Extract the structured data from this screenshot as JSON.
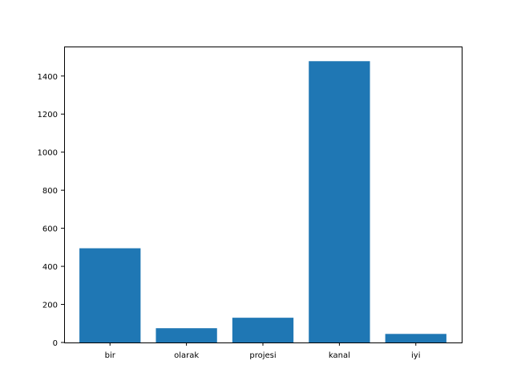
{
  "chart_data": {
    "type": "bar",
    "title": "",
    "xlabel": "",
    "ylabel": "",
    "categories": [
      "bir",
      "olarak",
      "projesi",
      "kanal",
      "iyi"
    ],
    "values": [
      495,
      75,
      130,
      1478,
      45
    ],
    "ylim": [
      0,
      1555
    ],
    "yticks": [
      0,
      200,
      400,
      600,
      800,
      1000,
      1200,
      1400
    ],
    "ytick_labels": [
      "0",
      "200",
      "400",
      "600",
      "800",
      "1000",
      "1200",
      "1400"
    ],
    "bar_color": "#1f77b4",
    "grid": false
  }
}
